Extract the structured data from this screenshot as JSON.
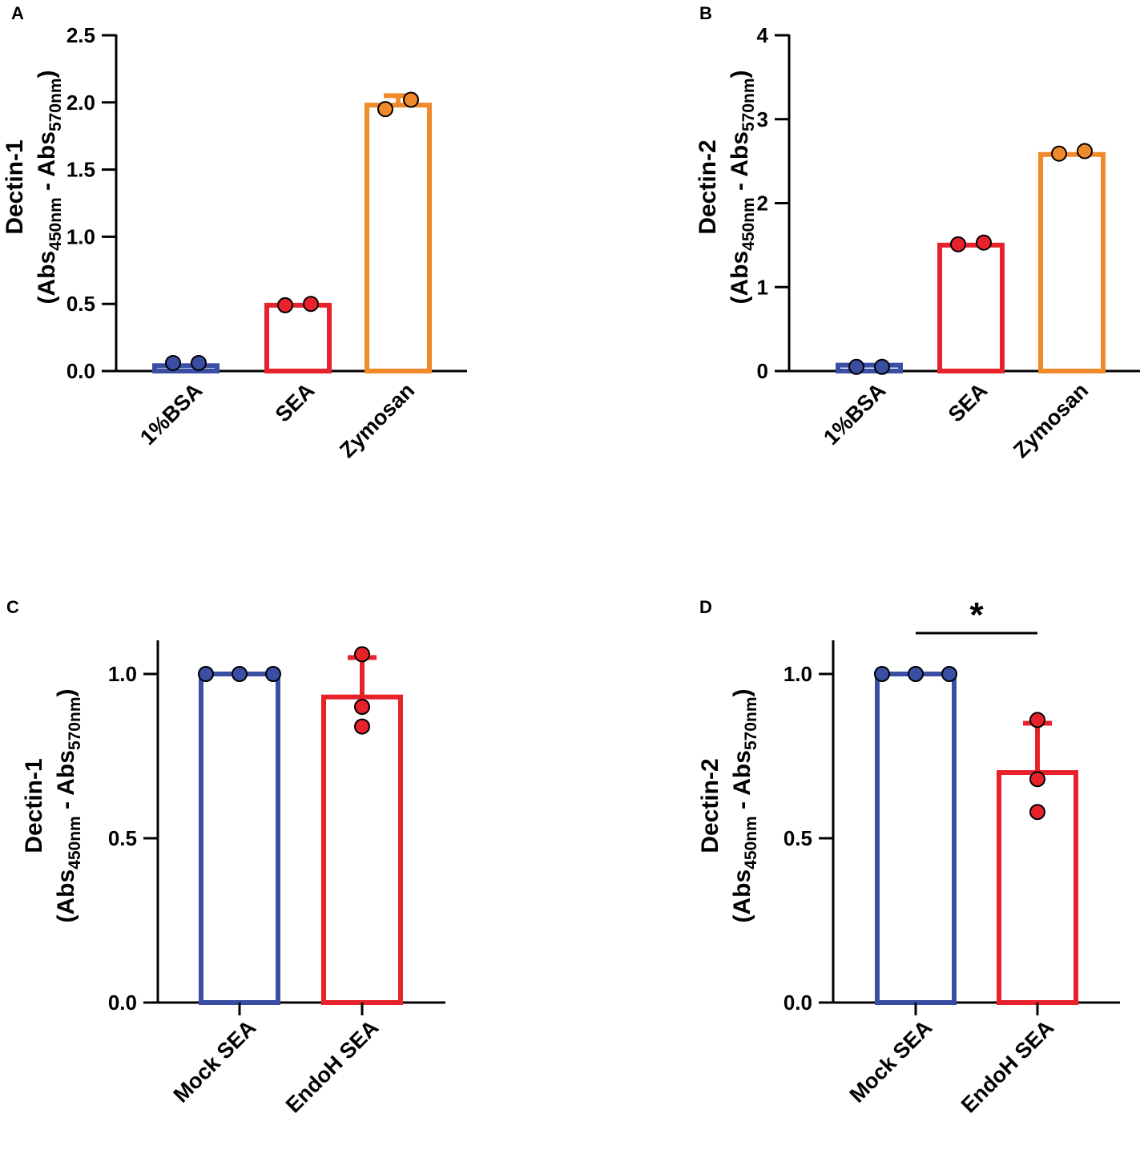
{
  "chart_data": [
    {
      "panel": "A",
      "type": "bar",
      "ylabel_line1": "Dectin-1",
      "ylabel_line2": {
        "open": "(Abs",
        "sub1": "450nm",
        "mid": " - Abs",
        "sub2": "570nm",
        "close": ")"
      },
      "ylim": [
        0,
        2.5
      ],
      "yticks": [
        "0.0",
        "0.5",
        "1.0",
        "1.5",
        "2.0",
        "2.5"
      ],
      "categories": [
        "1%BSA",
        "SEA",
        "Zymosan"
      ],
      "values": [
        0.04,
        0.49,
        1.98
      ],
      "errors": [
        0.0,
        0.0,
        0.07
      ],
      "points": [
        [
          0.06,
          0.06
        ],
        [
          0.49,
          0.5
        ],
        [
          1.95,
          2.02
        ]
      ],
      "colors": [
        "#3a4fa3",
        "#e8222b",
        "#f0892a"
      ]
    },
    {
      "panel": "B",
      "type": "bar",
      "ylabel_line1": "Dectin-2",
      "ylabel_line2": {
        "open": "(Abs",
        "sub1": "450nm",
        "mid": " - Abs",
        "sub2": "570nm",
        "close": ")"
      },
      "ylim": [
        0,
        4
      ],
      "yticks": [
        "0",
        "1",
        "2",
        "3",
        "4"
      ],
      "categories": [
        "1%BSA",
        "SEA",
        "Zymosan"
      ],
      "values": [
        0.07,
        1.5,
        2.58
      ],
      "errors": [
        0.0,
        0.0,
        0.0
      ],
      "points": [
        [
          0.05,
          0.05
        ],
        [
          1.51,
          1.53
        ],
        [
          2.59,
          2.62
        ]
      ],
      "colors": [
        "#3a4fa3",
        "#e8222b",
        "#f0892a"
      ]
    },
    {
      "panel": "C",
      "type": "bar",
      "ylabel_line1": "Dectin-1",
      "ylabel_line2": {
        "open": "(Abs",
        "sub1": "450nm",
        "mid": " - Abs",
        "sub2": "570nm",
        "close": ")"
      },
      "ylim": [
        0,
        1.1
      ],
      "yticks": [
        "0.0",
        "0.5",
        "1.0"
      ],
      "categories": [
        "Mock SEA",
        "EndoH SEA"
      ],
      "values": [
        1.0,
        0.93
      ],
      "errors": [
        0.0,
        0.12
      ],
      "points": [
        [
          1.0,
          1.0,
          1.0
        ],
        [
          1.06,
          0.9,
          0.84
        ]
      ],
      "colors": [
        "#3a4fa3",
        "#e8222b"
      ]
    },
    {
      "panel": "D",
      "type": "bar",
      "ylabel_line1": "Dectin-2",
      "ylabel_line2": {
        "open": "(Abs",
        "sub1": "450nm",
        "mid": " - Abs",
        "sub2": "570nm",
        "close": ")"
      },
      "ylim": [
        0,
        1.1
      ],
      "yticks": [
        "0.0",
        "0.5",
        "1.0"
      ],
      "categories": [
        "Mock SEA",
        "EndoH SEA"
      ],
      "values": [
        1.0,
        0.7
      ],
      "errors": [
        0.0,
        0.15
      ],
      "points": [
        [
          1.0,
          1.0,
          1.0
        ],
        [
          0.86,
          0.68,
          0.58
        ]
      ],
      "colors": [
        "#3a4fa3",
        "#e8222b"
      ],
      "significance": "*"
    }
  ]
}
